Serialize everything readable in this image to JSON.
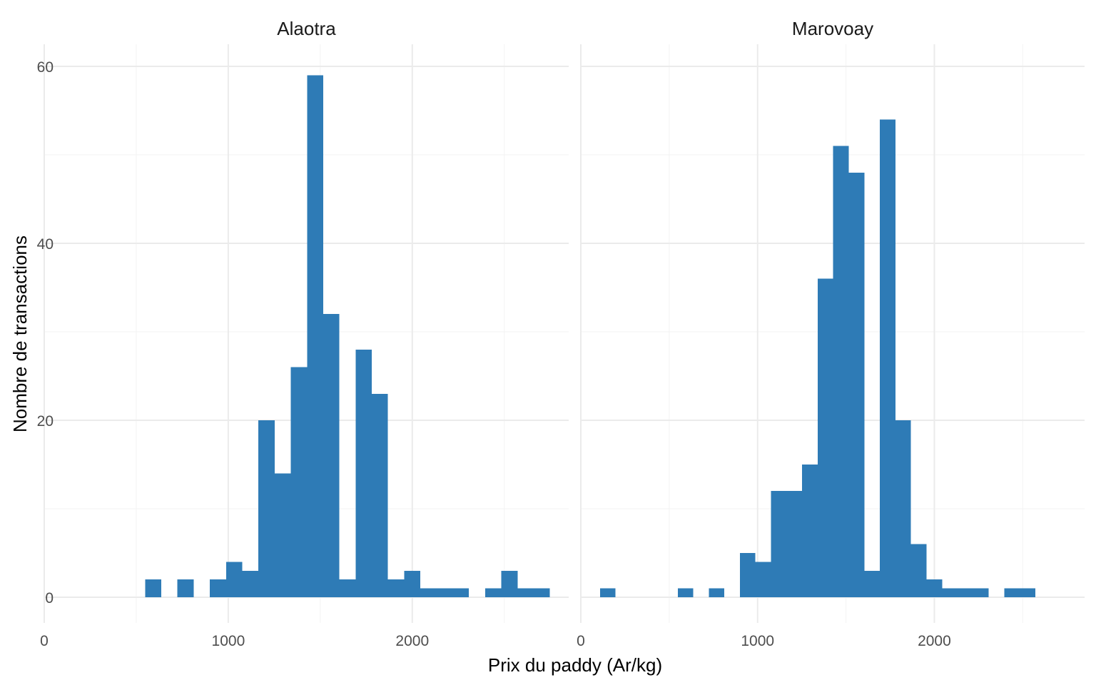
{
  "chart_data": {
    "type": "bar",
    "xlabel": "Prix du paddy (Ar/kg)",
    "ylabel": "Nombre de transactions",
    "xlim": [
      0,
      2850
    ],
    "ylim": [
      -2.9,
      62.5
    ],
    "x_ticks": [
      0,
      1000,
      2000
    ],
    "x_tick_labels": [
      "0",
      "1000",
      "2000"
    ],
    "y_ticks": [
      0,
      20,
      40,
      60
    ],
    "y_tick_labels": [
      "0",
      "20",
      "40",
      "60"
    ],
    "bin_width": 88,
    "bar_color": "#2E7BB6",
    "grid": true,
    "facets": [
      {
        "title": "Alaotra",
        "bins": [
          {
            "x": 592,
            "count": 2
          },
          {
            "x": 768,
            "count": 2
          },
          {
            "x": 944,
            "count": 2
          },
          {
            "x": 1032,
            "count": 4
          },
          {
            "x": 1120,
            "count": 3
          },
          {
            "x": 1208,
            "count": 20
          },
          {
            "x": 1296,
            "count": 14
          },
          {
            "x": 1384,
            "count": 26
          },
          {
            "x": 1472,
            "count": 59
          },
          {
            "x": 1560,
            "count": 32
          },
          {
            "x": 1648,
            "count": 2
          },
          {
            "x": 1736,
            "count": 28
          },
          {
            "x": 1824,
            "count": 23
          },
          {
            "x": 1912,
            "count": 2
          },
          {
            "x": 2000,
            "count": 3
          },
          {
            "x": 2088,
            "count": 1
          },
          {
            "x": 2176,
            "count": 1
          },
          {
            "x": 2264,
            "count": 1
          },
          {
            "x": 2440,
            "count": 1
          },
          {
            "x": 2528,
            "count": 3
          },
          {
            "x": 2616,
            "count": 1
          },
          {
            "x": 2704,
            "count": 1
          }
        ]
      },
      {
        "title": "Marovoay",
        "bins": [
          {
            "x": 152,
            "count": 1
          },
          {
            "x": 592,
            "count": 1
          },
          {
            "x": 768,
            "count": 1
          },
          {
            "x": 944,
            "count": 5
          },
          {
            "x": 1032,
            "count": 4
          },
          {
            "x": 1120,
            "count": 12
          },
          {
            "x": 1208,
            "count": 12
          },
          {
            "x": 1296,
            "count": 15
          },
          {
            "x": 1384,
            "count": 36
          },
          {
            "x": 1472,
            "count": 51
          },
          {
            "x": 1560,
            "count": 48
          },
          {
            "x": 1648,
            "count": 3
          },
          {
            "x": 1736,
            "count": 54
          },
          {
            "x": 1824,
            "count": 20
          },
          {
            "x": 1912,
            "count": 6
          },
          {
            "x": 2000,
            "count": 2
          },
          {
            "x": 2088,
            "count": 1
          },
          {
            "x": 2176,
            "count": 1
          },
          {
            "x": 2264,
            "count": 1
          },
          {
            "x": 2440,
            "count": 1
          },
          {
            "x": 2528,
            "count": 1
          }
        ]
      }
    ]
  }
}
